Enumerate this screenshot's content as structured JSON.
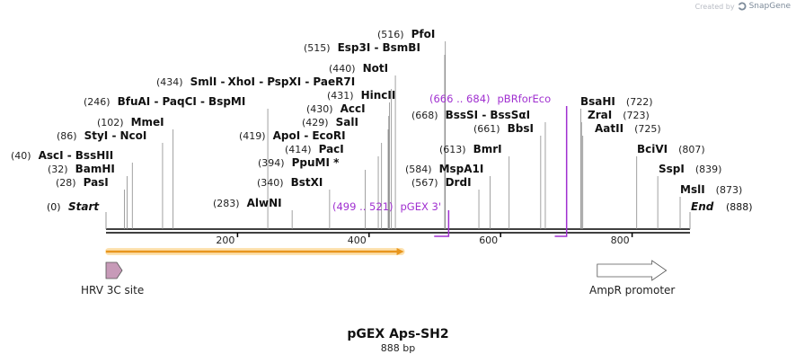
{
  "credit": {
    "prefix": "Created by",
    "brand": "SnapGene"
  },
  "plasmid": {
    "name": "pGEX Aps-SH2",
    "length_label": "888 bp",
    "length": 888
  },
  "axis": {
    "start": 0,
    "end": 888,
    "ticks": [
      200,
      400,
      600,
      800
    ]
  },
  "ends": {
    "start": {
      "pos_text": "(0)",
      "label": "Start",
      "pos": 0
    },
    "end": {
      "pos_text": "(888)",
      "label": "End",
      "pos": 888
    }
  },
  "sites": [
    {
      "id": "ascI-bssHII",
      "pos": 40,
      "pos_text": "(40)",
      "names": [
        "AscI",
        "BssHII"
      ]
    },
    {
      "id": "bamHI",
      "pos": 32,
      "pos_text": "(32)",
      "names": [
        "BamHI"
      ]
    },
    {
      "id": "pasI",
      "pos": 28,
      "pos_text": "(28)",
      "names": [
        "PasI"
      ]
    },
    {
      "id": "styI-ncoI",
      "pos": 86,
      "pos_text": "(86)",
      "names": [
        "StyI",
        "NcoI"
      ]
    },
    {
      "id": "mmeI",
      "pos": 102,
      "pos_text": "(102)",
      "names": [
        "MmeI"
      ]
    },
    {
      "id": "bfuAI-paqCI-bspMI",
      "pos": 246,
      "pos_text": "(246)",
      "names": [
        "BfuAI",
        "PaqCI",
        "BspMI"
      ]
    },
    {
      "id": "alwNI",
      "pos": 283,
      "pos_text": "(283)",
      "names": [
        "AlwNI"
      ]
    },
    {
      "id": "bstXI",
      "pos": 340,
      "pos_text": "(340)",
      "names": [
        "BstXI"
      ]
    },
    {
      "id": "ppuMI",
      "pos": 394,
      "pos_text": "(394)",
      "names": [
        "PpuMI *"
      ]
    },
    {
      "id": "pacI",
      "pos": 414,
      "pos_text": "(414)",
      "names": [
        "PacI"
      ]
    },
    {
      "id": "apoI-ecoRI",
      "pos": 419,
      "pos_text": "(419)",
      "names": [
        "ApoI",
        "EcoRI"
      ]
    },
    {
      "id": "salI",
      "pos": 429,
      "pos_text": "(429)",
      "names": [
        "SalI"
      ]
    },
    {
      "id": "accI",
      "pos": 430,
      "pos_text": "(430)",
      "names": [
        "AccI"
      ]
    },
    {
      "id": "hincII",
      "pos": 431,
      "pos_text": "(431)",
      "names": [
        "HincII"
      ]
    },
    {
      "id": "smlI-xhoI-pspXI-paeR7I",
      "pos": 434,
      "pos_text": "(434)",
      "names": [
        "SmlI",
        "XhoI",
        "PspXI",
        "PaeR7I"
      ]
    },
    {
      "id": "notI",
      "pos": 440,
      "pos_text": "(440)",
      "names": [
        "NotI"
      ]
    },
    {
      "id": "esp3I-bsmBI",
      "pos": 515,
      "pos_text": "(515)",
      "names": [
        "Esp3I",
        "BsmBI"
      ]
    },
    {
      "id": "pfoI",
      "pos": 516,
      "pos_text": "(516)",
      "names": [
        "PfoI"
      ]
    },
    {
      "id": "drdI",
      "pos": 567,
      "pos_text": "(567)",
      "names": [
        "DrdI"
      ]
    },
    {
      "id": "mspA1I",
      "pos": 584,
      "pos_text": "(584)",
      "names": [
        "MspA1I"
      ]
    },
    {
      "id": "bmrI",
      "pos": 613,
      "pos_text": "(613)",
      "names": [
        "BmrI"
      ]
    },
    {
      "id": "bbsI",
      "pos": 661,
      "pos_text": "(661)",
      "names": [
        "BbsI"
      ]
    },
    {
      "id": "bssSI-bssSaI",
      "pos": 668,
      "pos_text": "(668)",
      "names": [
        "BssSI",
        "BssSαI"
      ]
    },
    {
      "id": "bsaHI",
      "pos": 722,
      "pos_text": "(722)",
      "names": [
        "BsaHI"
      ]
    },
    {
      "id": "zraI",
      "pos": 723,
      "pos_text": "(723)",
      "names": [
        "ZraI"
      ]
    },
    {
      "id": "aatII",
      "pos": 725,
      "pos_text": "(725)",
      "names": [
        "AatII"
      ]
    },
    {
      "id": "bciVI",
      "pos": 807,
      "pos_text": "(807)",
      "names": [
        "BciVI"
      ]
    },
    {
      "id": "sspI",
      "pos": 839,
      "pos_text": "(839)",
      "names": [
        "SspI"
      ]
    },
    {
      "id": "mslI",
      "pos": 873,
      "pos_text": "(873)",
      "names": [
        "MslI"
      ]
    }
  ],
  "primers": [
    {
      "id": "pgex-3",
      "range_text": "(499 .. 521)",
      "name": "pGEX 3'",
      "start": 499,
      "end": 521,
      "color": "#a030d0"
    },
    {
      "id": "pbrforeco",
      "range_text": "(666 .. 684)",
      "name": "pBRforEco",
      "start": 666,
      "end": 684,
      "color": "#a030d0"
    }
  ],
  "features": [
    {
      "id": "orf",
      "label": "",
      "start": 0,
      "end": 453,
      "color": "#e8961e",
      "type": "orf"
    },
    {
      "id": "hrv-3c-site",
      "label": "HRV 3C site",
      "start": 0,
      "end": 27,
      "color": "#c79ab8",
      "type": "arrow"
    },
    {
      "id": "ampr-promoter",
      "label": "AmpR promoter",
      "start": 747,
      "end": 852,
      "color": "#ffffff",
      "type": "arrow"
    }
  ]
}
